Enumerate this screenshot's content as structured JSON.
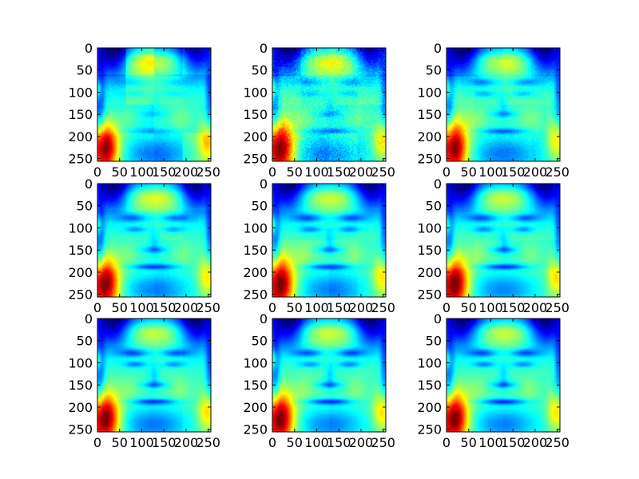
{
  "chart_data": {
    "type": "heatmap",
    "colormap": "jet",
    "grid": false,
    "layout": {
      "rows": 3,
      "cols": 3
    },
    "panel_count": 9,
    "image_shape": [
      256,
      256
    ],
    "xlim": [
      0,
      256
    ],
    "ylim": [
      256,
      0
    ],
    "x_ticks": [
      0,
      50,
      100,
      150,
      200,
      250
    ],
    "y_ticks": [
      0,
      50,
      100,
      150,
      200,
      250
    ],
    "x_tick_labels": [
      "0",
      "50",
      "100",
      "150",
      "200",
      "250"
    ],
    "y_tick_labels": [
      "0",
      "50",
      "100",
      "150",
      "200",
      "250"
    ],
    "panels": [
      {
        "row": 0,
        "col": 0,
        "feature_strength": 0.35,
        "block_artifact": 0.9,
        "noise": 0.1
      },
      {
        "row": 0,
        "col": 1,
        "feature_strength": 0.55,
        "block_artifact": 0.6,
        "noise": 0.3
      },
      {
        "row": 0,
        "col": 2,
        "feature_strength": 0.7,
        "block_artifact": 0.45,
        "noise": 0.12
      },
      {
        "row": 1,
        "col": 0,
        "feature_strength": 0.8,
        "block_artifact": 0.35,
        "noise": 0.08
      },
      {
        "row": 1,
        "col": 1,
        "feature_strength": 0.88,
        "block_artifact": 0.25,
        "noise": 0.06
      },
      {
        "row": 1,
        "col": 2,
        "feature_strength": 0.9,
        "block_artifact": 0.2,
        "noise": 0.05
      },
      {
        "row": 2,
        "col": 0,
        "feature_strength": 0.92,
        "block_artifact": 0.2,
        "noise": 0.05
      },
      {
        "row": 2,
        "col": 1,
        "feature_strength": 0.95,
        "block_artifact": 0.15,
        "noise": 0.04
      },
      {
        "row": 2,
        "col": 2,
        "feature_strength": 0.96,
        "block_artifact": 0.12,
        "noise": 0.04
      }
    ]
  }
}
